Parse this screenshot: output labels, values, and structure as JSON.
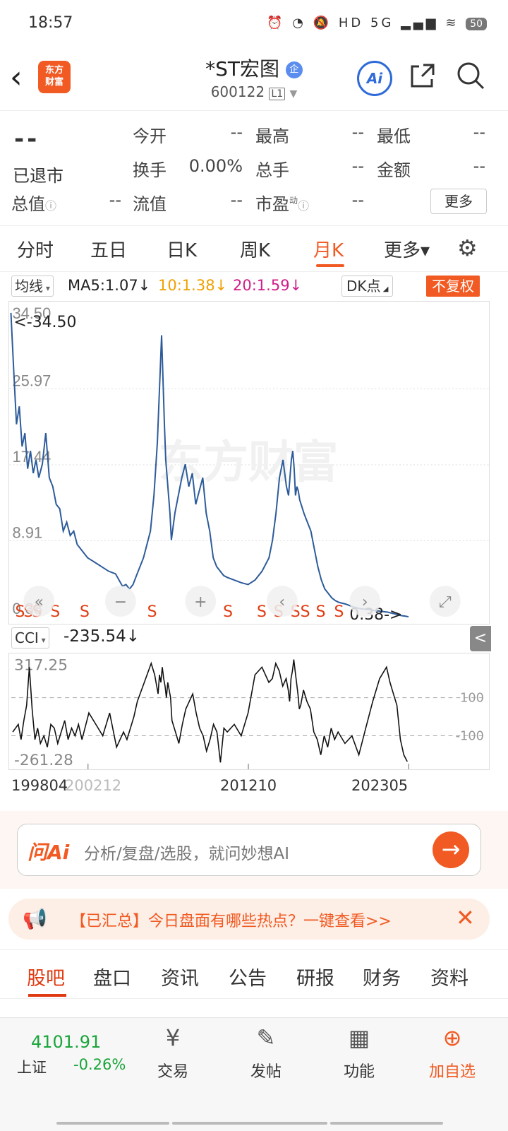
{
  "status_bar": {
    "time": "18:57",
    "icons": "⏰ ◔ 🔕 HD 5G ▂▄▆ ≋",
    "battery": "50"
  },
  "header": {
    "logo_line1": "东方",
    "logo_line2": "财富",
    "title": "*ST宏图",
    "title_badge": "企",
    "code": "600122",
    "level": "L1"
  },
  "quote": {
    "price": "--",
    "status": "已退市",
    "labels": {
      "open": "今开",
      "high": "最高",
      "low": "最低",
      "turnover": "换手",
      "volume": "总手",
      "amount": "金额",
      "mcap": "总值",
      "float": "流值",
      "pe": "市盈"
    },
    "pe_superscript": "动",
    "values": {
      "open": "--",
      "high": "--",
      "low": "--",
      "turnover": "0.00%",
      "volume": "--",
      "amount": "--",
      "mcap": "--",
      "float": "--",
      "pe": "--"
    },
    "more": "更多"
  },
  "tabs": [
    "分时",
    "五日",
    "日K",
    "周K",
    "月K",
    "更多▾"
  ],
  "active_tab": "月K",
  "ma_bar": {
    "select": "均线",
    "ma5": "MA5:1.07↓",
    "ma10": "10:1.38↓",
    "ma20": "20:1.59↓",
    "dk": "DK点",
    "fq": "不复权",
    "color_ma5": "#222222",
    "color_ma10": "#f0a000",
    "color_ma20": "#d01c8b"
  },
  "chart_data": [
    {
      "type": "line",
      "y_ticks": [
        "34.50",
        "25.97",
        "17.44",
        "8.91",
        "0.38"
      ],
      "ylim": [
        0.38,
        34.5
      ],
      "max_label": "<-34.50",
      "min_label": "0.38->",
      "signal_label": "S",
      "signal_count": 16,
      "x": [
        0,
        4,
        8,
        12,
        16,
        20,
        24,
        28,
        32,
        36,
        40,
        45,
        50,
        55,
        60,
        65,
        70,
        75,
        80,
        85,
        90,
        95,
        100,
        110,
        120,
        130,
        140,
        150,
        160,
        165,
        170,
        175,
        180,
        190,
        200,
        205,
        210,
        212,
        214,
        216,
        218,
        220,
        222,
        224,
        226,
        228,
        230,
        235,
        240,
        245,
        250,
        255,
        260,
        265,
        270,
        275,
        280,
        285,
        290,
        295,
        300,
        305,
        310,
        320,
        330,
        340,
        350,
        360,
        370,
        375,
        380,
        385,
        390,
        395,
        398,
        400,
        402,
        404,
        406,
        408,
        410,
        412,
        414,
        416,
        418,
        420,
        425,
        430,
        435,
        440,
        445,
        450,
        455,
        460,
        465,
        470,
        480,
        490,
        500,
        510,
        520,
        530,
        540,
        545,
        550,
        555,
        560,
        565,
        570
      ],
      "y": [
        34.5,
        28.0,
        22.0,
        24.0,
        19.5,
        21.0,
        17.0,
        19.0,
        16.5,
        18.0,
        16.0,
        17.5,
        21.0,
        16.0,
        15.0,
        13.0,
        12.5,
        10.0,
        11.0,
        9.5,
        10.0,
        8.5,
        8.0,
        7.0,
        6.5,
        6.0,
        5.5,
        5.2,
        3.8,
        4.0,
        3.5,
        4.0,
        5.0,
        7.0,
        10.0,
        14.0,
        20.0,
        24.0,
        28.0,
        32.0,
        27.0,
        22.0,
        18.0,
        16.0,
        14.0,
        12.0,
        9.0,
        12.0,
        14.0,
        16.0,
        17.5,
        15.0,
        16.5,
        13.0,
        14.5,
        16.0,
        12.0,
        10.0,
        7.0,
        6.0,
        5.5,
        5.0,
        4.8,
        4.5,
        4.2,
        4.0,
        4.5,
        5.5,
        7.0,
        9.0,
        12.0,
        16.0,
        18.0,
        15.0,
        14.0,
        16.0,
        18.0,
        19.0,
        17.0,
        14.0,
        15.0,
        14.5,
        13.5,
        13.0,
        12.5,
        12.0,
        11.0,
        10.0,
        8.0,
        6.0,
        4.5,
        3.5,
        3.0,
        2.5,
        2.2,
        2.0,
        1.8,
        1.5,
        1.3,
        1.2,
        1.1,
        1.0,
        0.9,
        0.8,
        0.7,
        0.6,
        0.5,
        0.45,
        0.38
      ]
    },
    {
      "type": "line",
      "title": "CCI",
      "current": "-235.54↓",
      "y_ticks": [
        "317.25",
        "-261.28"
      ],
      "ylim": [
        -261.28,
        317.25
      ],
      "ref_lines": [
        100,
        -100
      ],
      "ref_labels": [
        "100",
        "-100"
      ],
      "x_labels": [
        "199804",
        "200212",
        "201210",
        "202305"
      ],
      "x": [
        0,
        4,
        8,
        12,
        16,
        20,
        24,
        28,
        32,
        36,
        40,
        45,
        50,
        55,
        60,
        65,
        70,
        75,
        80,
        85,
        90,
        95,
        100,
        110,
        120,
        130,
        140,
        150,
        160,
        165,
        170,
        175,
        180,
        190,
        200,
        205,
        210,
        212,
        214,
        216,
        218,
        220,
        222,
        224,
        226,
        228,
        230,
        235,
        240,
        245,
        250,
        255,
        260,
        265,
        270,
        275,
        280,
        285,
        290,
        295,
        300,
        305,
        310,
        320,
        330,
        340,
        350,
        360,
        370,
        375,
        380,
        385,
        390,
        395,
        398,
        400,
        402,
        404,
        406,
        408,
        410,
        412,
        414,
        416,
        418,
        420,
        425,
        430,
        435,
        440,
        445,
        450,
        455,
        460,
        465,
        470,
        480,
        490,
        500,
        510,
        520,
        530,
        540,
        545,
        550,
        555,
        560,
        565,
        570
      ],
      "y": [
        -80,
        -60,
        -40,
        -120,
        -20,
        60,
        260,
        40,
        -120,
        -60,
        -140,
        -100,
        -160,
        -40,
        -60,
        -140,
        -80,
        -20,
        -120,
        -60,
        -100,
        -40,
        -120,
        20,
        -40,
        -100,
        20,
        -160,
        -80,
        -120,
        -60,
        0,
        80,
        180,
        280,
        220,
        120,
        220,
        180,
        260,
        200,
        160,
        100,
        180,
        140,
        100,
        -20,
        -80,
        -140,
        -40,
        40,
        80,
        120,
        20,
        -60,
        -100,
        -180,
        -120,
        -40,
        -80,
        -240,
        -60,
        -80,
        -40,
        -100,
        20,
        220,
        260,
        180,
        200,
        280,
        240,
        160,
        200,
        140,
        80,
        200,
        240,
        300,
        240,
        180,
        120,
        40,
        60,
        100,
        140,
        80,
        40,
        -80,
        -120,
        -200,
        -100,
        -160,
        -60,
        -120,
        -80,
        -140,
        -100,
        -200,
        -60,
        80,
        200,
        260,
        180,
        120,
        60,
        -120,
        -200,
        -235.54
      ]
    }
  ],
  "chart_controls": {
    "collapse": "<"
  },
  "ai_bar": {
    "logo": "问Ai",
    "placeholder": "分析/复盘/选股，就问妙想AI",
    "go": "→"
  },
  "notice": {
    "text": "【已汇总】今日盘面有哪些热点？一键查看>>",
    "close": "✕"
  },
  "sub_tabs": [
    "股吧",
    "盘口",
    "资讯",
    "公告",
    "研报",
    "财务",
    "资料"
  ],
  "active_sub_tab": "股吧",
  "bottom_bar": {
    "index_value": "4101.91",
    "index_name": "上证",
    "index_change": "-0.26%",
    "nav": [
      {
        "label": "交易",
        "icon": "¥"
      },
      {
        "label": "发帖",
        "icon": "✎"
      },
      {
        "label": "功能",
        "icon": "▦"
      },
      {
        "label": "加自选",
        "icon": "⊕"
      }
    ]
  },
  "colors": {
    "accent": "#f15a22",
    "line": "#2d5b9a",
    "signal": "#e03b12",
    "down": "#1aa53b"
  }
}
